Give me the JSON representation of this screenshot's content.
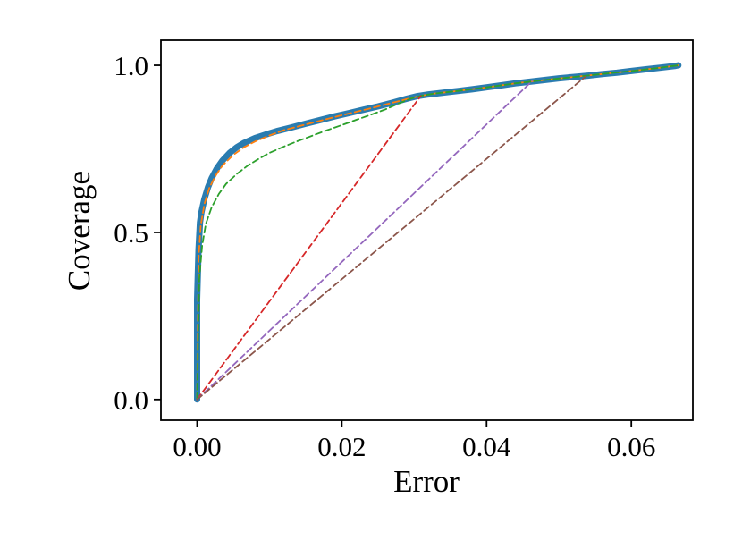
{
  "chart_data": {
    "type": "line",
    "title": "",
    "xlabel": "Error",
    "ylabel": "Coverage",
    "xlim": [
      -0.005,
      0.0685
    ],
    "ylim": [
      -0.062,
      1.075
    ],
    "grid": false,
    "legend_position": "none",
    "xticks": {
      "values": [
        0.0,
        0.02,
        0.04,
        0.06
      ],
      "labels": [
        "0.00",
        "0.02",
        "0.04",
        "0.06"
      ]
    },
    "yticks": {
      "values": [
        0.0,
        0.5,
        1.0
      ],
      "labels": [
        "0.0",
        "0.5",
        "1.0"
      ]
    },
    "series": [
      {
        "name": "coverage-curve-blue-solid",
        "color": "#2a7cb0",
        "style": "solid",
        "width": 7,
        "points": [
          [
            0.0,
            0.0
          ],
          [
            0.0,
            0.3
          ],
          [
            0.0002,
            0.45
          ],
          [
            0.0004,
            0.53
          ],
          [
            0.0006,
            0.56
          ],
          [
            0.001,
            0.6
          ],
          [
            0.0015,
            0.635
          ],
          [
            0.002,
            0.662
          ],
          [
            0.0027,
            0.69
          ],
          [
            0.0035,
            0.715
          ],
          [
            0.0045,
            0.738
          ],
          [
            0.0055,
            0.755
          ],
          [
            0.0065,
            0.768
          ],
          [
            0.008,
            0.782
          ],
          [
            0.0095,
            0.793
          ],
          [
            0.011,
            0.803
          ],
          [
            0.013,
            0.814
          ],
          [
            0.015,
            0.825
          ],
          [
            0.017,
            0.836
          ],
          [
            0.019,
            0.847
          ],
          [
            0.021,
            0.857
          ],
          [
            0.023,
            0.867
          ],
          [
            0.025,
            0.877
          ],
          [
            0.027,
            0.888
          ],
          [
            0.029,
            0.9
          ],
          [
            0.0305,
            0.908
          ],
          [
            0.032,
            0.913
          ],
          [
            0.034,
            0.918
          ],
          [
            0.036,
            0.923
          ],
          [
            0.038,
            0.928
          ],
          [
            0.04,
            0.934
          ],
          [
            0.042,
            0.94
          ],
          [
            0.044,
            0.946
          ],
          [
            0.046,
            0.951
          ],
          [
            0.048,
            0.956
          ],
          [
            0.05,
            0.961
          ],
          [
            0.052,
            0.965
          ],
          [
            0.054,
            0.969
          ],
          [
            0.056,
            0.974
          ],
          [
            0.058,
            0.978
          ],
          [
            0.06,
            0.983
          ],
          [
            0.062,
            0.988
          ],
          [
            0.064,
            0.993
          ],
          [
            0.066,
            0.998
          ],
          [
            0.0665,
            1.0
          ]
        ]
      },
      {
        "name": "coverage-curve-orange-dashed",
        "color": "#ff7f0e",
        "style": "dashed",
        "width": 1.8,
        "points": [
          [
            0.0,
            0.0
          ],
          [
            0.0002,
            0.42
          ],
          [
            0.0005,
            0.52
          ],
          [
            0.001,
            0.585
          ],
          [
            0.0017,
            0.633
          ],
          [
            0.0025,
            0.668
          ],
          [
            0.0035,
            0.7
          ],
          [
            0.005,
            0.732
          ],
          [
            0.0065,
            0.755
          ],
          [
            0.008,
            0.772
          ],
          [
            0.01,
            0.79
          ],
          [
            0.012,
            0.806
          ],
          [
            0.0145,
            0.82
          ],
          [
            0.017,
            0.834
          ],
          [
            0.0195,
            0.848
          ],
          [
            0.022,
            0.861
          ],
          [
            0.0245,
            0.874
          ],
          [
            0.027,
            0.888
          ],
          [
            0.029,
            0.899
          ],
          [
            0.031,
            0.909
          ],
          [
            0.033,
            0.916
          ],
          [
            0.036,
            0.923
          ],
          [
            0.04,
            0.934
          ],
          [
            0.044,
            0.946
          ],
          [
            0.048,
            0.956
          ],
          [
            0.052,
            0.965
          ],
          [
            0.056,
            0.974
          ],
          [
            0.06,
            0.983
          ],
          [
            0.064,
            0.993
          ],
          [
            0.0665,
            1.0
          ]
        ]
      },
      {
        "name": "coverage-curve-green-dashed",
        "color": "#2ca02c",
        "style": "dashed",
        "width": 1.8,
        "points": [
          [
            0.0,
            0.0
          ],
          [
            0.0003,
            0.36
          ],
          [
            0.0007,
            0.46
          ],
          [
            0.0012,
            0.525
          ],
          [
            0.002,
            0.575
          ],
          [
            0.003,
            0.615
          ],
          [
            0.004,
            0.645
          ],
          [
            0.0055,
            0.675
          ],
          [
            0.007,
            0.7
          ],
          [
            0.0085,
            0.72
          ],
          [
            0.01,
            0.738
          ],
          [
            0.012,
            0.757
          ],
          [
            0.014,
            0.774
          ],
          [
            0.016,
            0.79
          ],
          [
            0.018,
            0.806
          ],
          [
            0.02,
            0.821
          ],
          [
            0.022,
            0.837
          ],
          [
            0.024,
            0.852
          ],
          [
            0.026,
            0.868
          ],
          [
            0.028,
            0.887
          ],
          [
            0.0295,
            0.9
          ],
          [
            0.031,
            0.909
          ],
          [
            0.033,
            0.916
          ],
          [
            0.036,
            0.923
          ],
          [
            0.04,
            0.934
          ],
          [
            0.044,
            0.946
          ],
          [
            0.048,
            0.956
          ],
          [
            0.052,
            0.965
          ],
          [
            0.056,
            0.974
          ],
          [
            0.06,
            0.983
          ],
          [
            0.064,
            0.993
          ],
          [
            0.0665,
            1.0
          ]
        ]
      },
      {
        "name": "chord-red-dashed",
        "color": "#d62728",
        "style": "dashed",
        "width": 1.8,
        "points": [
          [
            0.0,
            0.0
          ],
          [
            0.0309,
            0.908
          ]
        ]
      },
      {
        "name": "chord-purple-dashed",
        "color": "#9467bd",
        "style": "dashed",
        "width": 1.8,
        "points": [
          [
            0.0,
            0.0
          ],
          [
            0.0463,
            0.953
          ]
        ]
      },
      {
        "name": "chord-brown-dashed",
        "color": "#8c564b",
        "style": "dashed",
        "width": 1.8,
        "points": [
          [
            0.0,
            0.0
          ],
          [
            0.0537,
            0.967
          ]
        ]
      }
    ]
  }
}
